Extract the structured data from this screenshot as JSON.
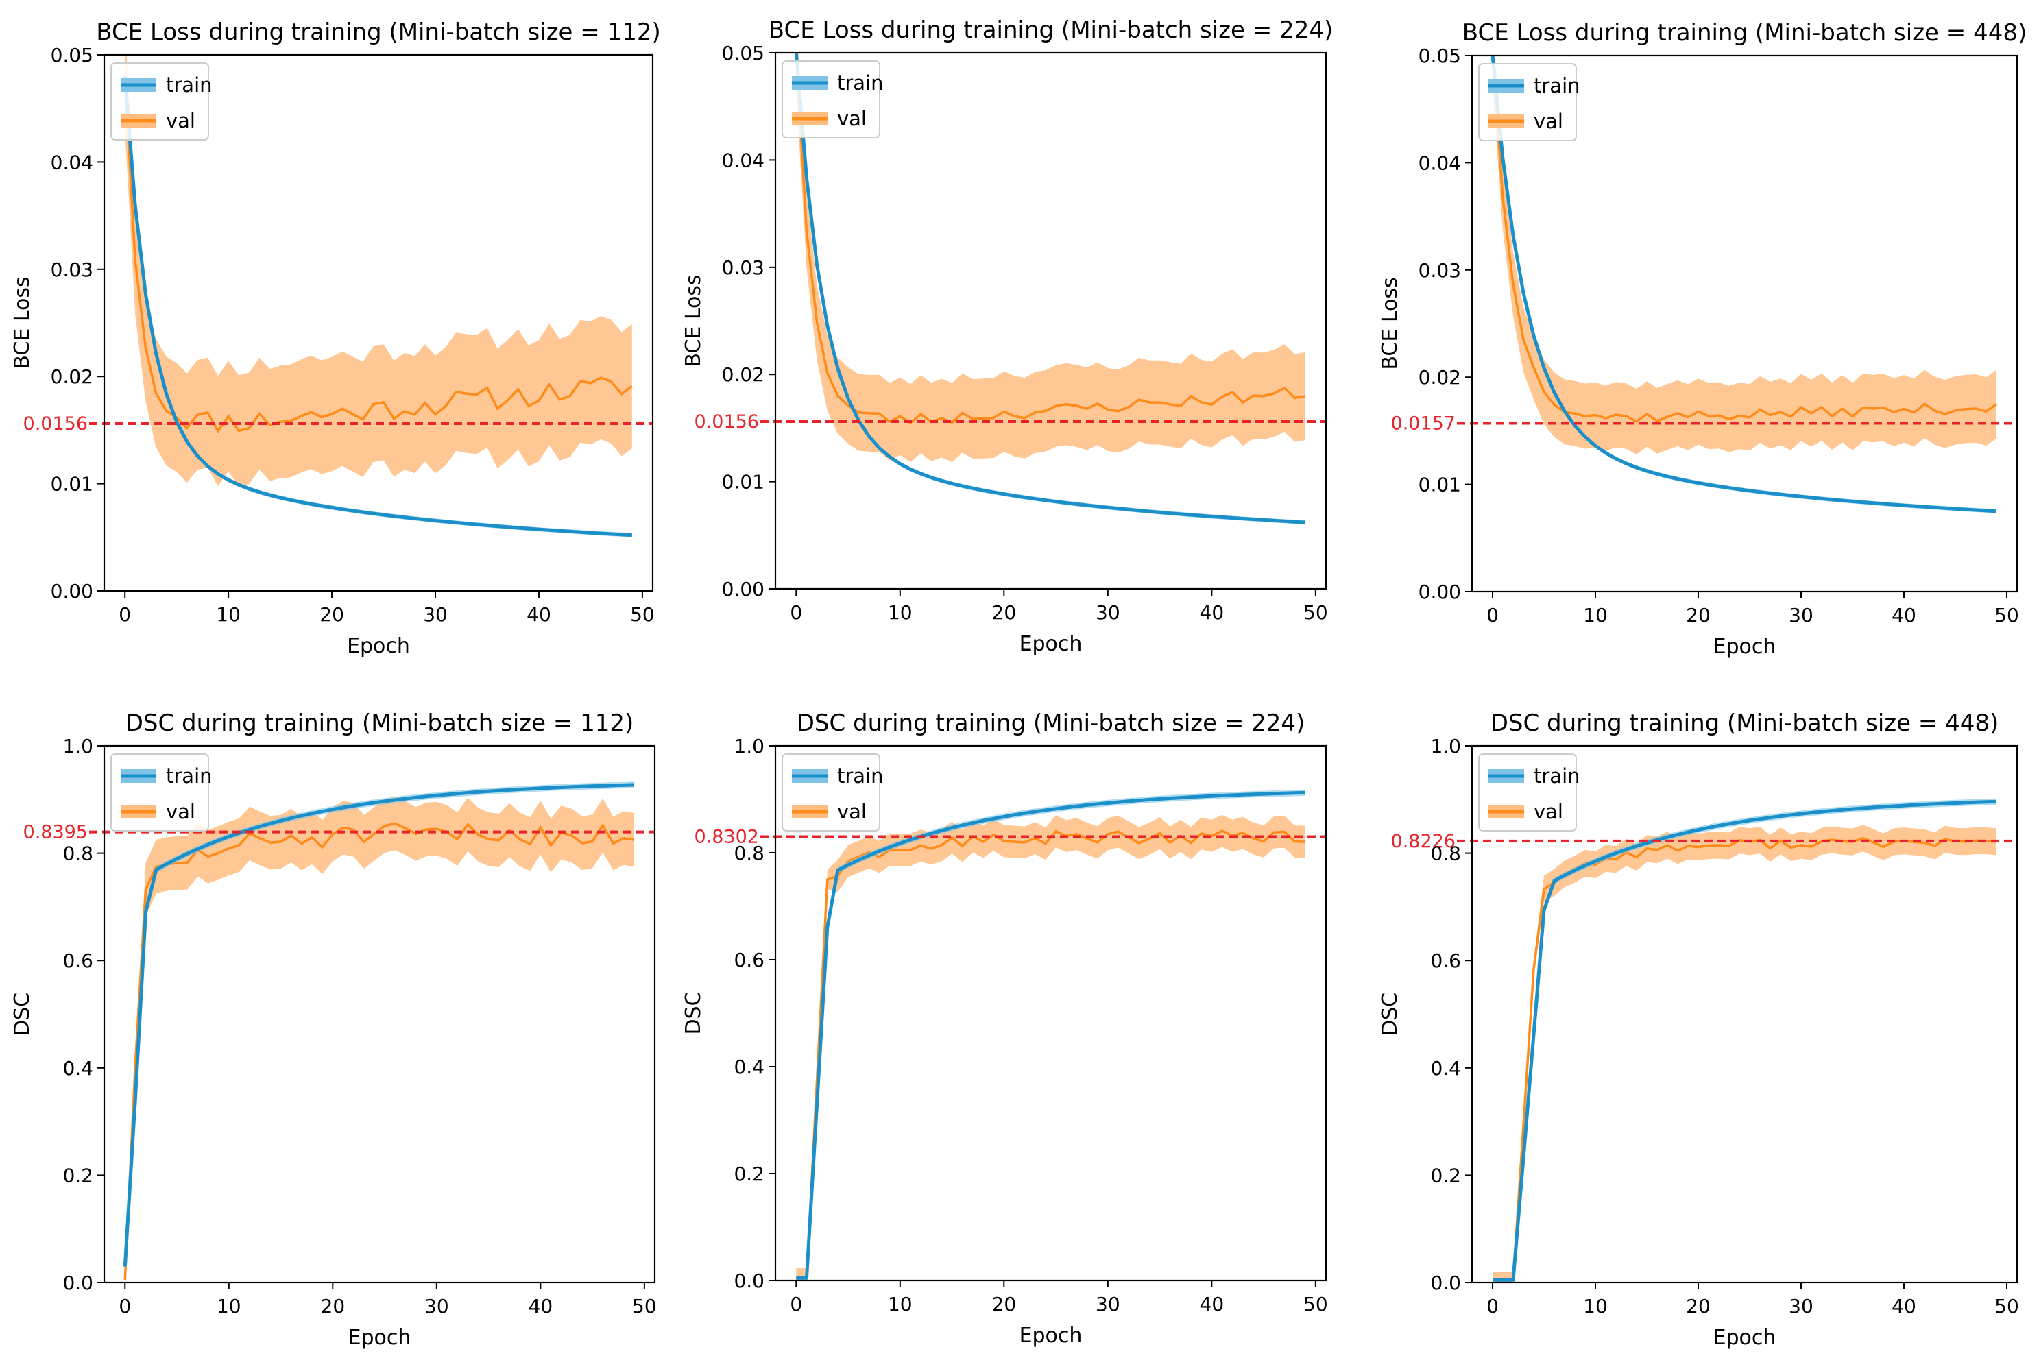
{
  "colors": {
    "train": "#1a8fc9",
    "val": "#ff8c1a",
    "val_band": "#ffbd80",
    "train_band": "#7fc4e6",
    "ref": "#e8232a"
  },
  "chart_data": [
    {
      "type": "line",
      "title": "BCE Loss during training (Mini-batch size = 112)",
      "xlabel": "Epoch",
      "ylabel": "BCE Loss",
      "xlim": [
        -2,
        51
      ],
      "ylim": [
        0,
        0.05
      ],
      "xticks": [
        0,
        10,
        20,
        30,
        40,
        50
      ],
      "xtick_labels": [
        "0",
        "10",
        "20",
        "30",
        "40",
        "50"
      ],
      "yticks": [
        0,
        0.01,
        0.02,
        0.03,
        0.04,
        0.05
      ],
      "ytick_labels": [
        "0.00",
        "0.01",
        "0.02",
        "0.03",
        "0.04",
        "0.05"
      ],
      "legend": [
        "train",
        "val"
      ],
      "legend_loc": "upper left",
      "ref_line": 0.0156,
      "ref_label": "0.0156",
      "series": [
        {
          "name": "train",
          "kind": "loss",
          "start": 0.048,
          "end": 0.0052,
          "tau": 2.4,
          "tail": 10,
          "tail_exp": 0.55,
          "noise": 0,
          "band": 0.0002
        },
        {
          "name": "val",
          "kind": "loss",
          "start": 0.048,
          "min": 0.0158,
          "end": 0.0192,
          "tau": 1.3,
          "noise": 0.0011,
          "band": 0.005,
          "band_grow": 0.0008,
          "seed": 11
        }
      ]
    },
    {
      "type": "line",
      "title": "BCE Loss during training (Mini-batch size = 224)",
      "xlabel": "Epoch",
      "ylabel": "BCE Loss",
      "xlim": [
        -2,
        51
      ],
      "ylim": [
        0,
        0.05
      ],
      "xticks": [
        0,
        10,
        20,
        30,
        40,
        50
      ],
      "xtick_labels": [
        "0",
        "10",
        "20",
        "30",
        "40",
        "50"
      ],
      "yticks": [
        0,
        0.01,
        0.02,
        0.03,
        0.04,
        0.05
      ],
      "ytick_labels": [
        "0.00",
        "0.01",
        "0.02",
        "0.03",
        "0.04",
        "0.05"
      ],
      "legend": [
        "train",
        "val"
      ],
      "legend_loc": "upper left",
      "ref_line": 0.0156,
      "ref_label": "0.0156",
      "series": [
        {
          "name": "train",
          "kind": "loss",
          "start": 0.05,
          "end": 0.0062,
          "tau": 2.6,
          "tail": 10,
          "tail_exp": 0.55,
          "noise": 0,
          "band": 0.0002
        },
        {
          "name": "val",
          "kind": "loss",
          "start": 0.05,
          "min": 0.0158,
          "end": 0.0183,
          "tau": 1.5,
          "noise": 0.0006,
          "band": 0.0035,
          "band_grow": 0.0006,
          "seed": 23
        }
      ]
    },
    {
      "type": "line",
      "title": "BCE Loss during training (Mini-batch size = 448)",
      "xlabel": "Epoch",
      "ylabel": "BCE Loss",
      "xlim": [
        -2,
        51
      ],
      "ylim": [
        0,
        0.05
      ],
      "xticks": [
        0,
        10,
        20,
        30,
        40,
        50
      ],
      "xtick_labels": [
        "0",
        "10",
        "20",
        "30",
        "40",
        "50"
      ],
      "yticks": [
        0,
        0.01,
        0.02,
        0.03,
        0.04,
        0.05
      ],
      "ytick_labels": [
        "0.00",
        "0.01",
        "0.02",
        "0.03",
        "0.04",
        "0.05"
      ],
      "legend": [
        "train",
        "val"
      ],
      "legend_loc": "upper left",
      "ref_line": 0.0157,
      "ref_label": "0.0157",
      "series": [
        {
          "name": "train",
          "kind": "loss",
          "start": 0.05,
          "end": 0.0075,
          "tau": 3.2,
          "tail": 11,
          "tail_exp": 0.6,
          "noise": 0,
          "band": 0.0002
        },
        {
          "name": "val",
          "kind": "loss",
          "start": 0.05,
          "min": 0.0162,
          "end": 0.0172,
          "tau": 2.0,
          "noise": 0.0005,
          "band": 0.003,
          "band_grow": 0.0002,
          "seed": 37
        }
      ]
    },
    {
      "type": "line",
      "title": "DSC during training (Mini-batch size = 112)",
      "xlabel": "Epoch",
      "ylabel": "DSC",
      "xlim": [
        -2,
        51
      ],
      "ylim": [
        0,
        1.0
      ],
      "xticks": [
        0,
        10,
        20,
        30,
        40,
        50
      ],
      "xtick_labels": [
        "0",
        "10",
        "20",
        "30",
        "40",
        "50"
      ],
      "yticks": [
        0,
        0.2,
        0.4,
        0.6,
        0.8,
        1.0
      ],
      "ytick_labels": [
        "0.0",
        "0.2",
        "0.4",
        "0.6",
        "0.8",
        "1.0"
      ],
      "legend": [
        "train",
        "val"
      ],
      "legend_loc": "upper left",
      "ref_line": 0.8395,
      "ref_label": "0.8395",
      "series": [
        {
          "name": "train",
          "kind": "dsc",
          "onset": 0,
          "rise": 2.2,
          "plateau": 0.76,
          "end": 0.935,
          "grow_tau": 15,
          "noise": 0,
          "band": 0.006
        },
        {
          "name": "val",
          "kind": "dsc",
          "onset": 0,
          "rise": 1.8,
          "plateau": 0.74,
          "end": 0.835,
          "grow_tau": 6,
          "noise": 0.022,
          "band": 0.05,
          "band_grow": 0,
          "seed": 51
        }
      ]
    },
    {
      "type": "line",
      "title": "DSC during training (Mini-batch size = 224)",
      "xlabel": "Epoch",
      "ylabel": "DSC",
      "xlim": [
        -2,
        51
      ],
      "ylim": [
        0,
        1.0
      ],
      "xticks": [
        0,
        10,
        20,
        30,
        40,
        50
      ],
      "xtick_labels": [
        "0",
        "10",
        "20",
        "30",
        "40",
        "50"
      ],
      "yticks": [
        0,
        0.2,
        0.4,
        0.6,
        0.8,
        1.0
      ],
      "ytick_labels": [
        "0.0",
        "0.2",
        "0.4",
        "0.6",
        "0.8",
        "1.0"
      ],
      "legend": [
        "train",
        "val"
      ],
      "legend_loc": "upper left",
      "ref_line": 0.8302,
      "ref_label": "0.8302",
      "series": [
        {
          "name": "train",
          "kind": "dsc",
          "onset": 1,
          "rise": 2.3,
          "plateau": 0.76,
          "end": 0.92,
          "grow_tau": 15,
          "noise": 0,
          "band": 0.006
        },
        {
          "name": "val",
          "kind": "dsc",
          "onset": 1,
          "rise": 2.0,
          "plateau": 0.75,
          "end": 0.83,
          "grow_tau": 6,
          "noise": 0.012,
          "band": 0.03,
          "band_grow": 0,
          "seed": 63
        }
      ]
    },
    {
      "type": "line",
      "title": "DSC during training (Mini-batch size = 448)",
      "xlabel": "Epoch",
      "ylabel": "DSC",
      "xlim": [
        -2,
        51
      ],
      "ylim": [
        0,
        1.0
      ],
      "xticks": [
        0,
        10,
        20,
        30,
        40,
        50
      ],
      "xtick_labels": [
        "0",
        "10",
        "20",
        "30",
        "40",
        "50"
      ],
      "yticks": [
        0,
        0.2,
        0.4,
        0.6,
        0.8,
        1.0
      ],
      "ytick_labels": [
        "0.0",
        "0.2",
        "0.4",
        "0.6",
        "0.8",
        "1.0"
      ],
      "legend": [
        "train",
        "val"
      ],
      "legend_loc": "upper left",
      "ref_line": 0.8226,
      "ref_label": "0.8226",
      "series": [
        {
          "name": "train",
          "kind": "dsc",
          "onset": 2,
          "rise": 3.2,
          "plateau": 0.74,
          "end": 0.905,
          "grow_tau": 15,
          "noise": 0,
          "band": 0.006
        },
        {
          "name": "val",
          "kind": "dsc",
          "onset": 2,
          "rise": 2.5,
          "plateau": 0.73,
          "end": 0.82,
          "grow_tau": 6,
          "noise": 0.009,
          "band": 0.025,
          "band_grow": 0,
          "seed": 77
        }
      ]
    }
  ]
}
